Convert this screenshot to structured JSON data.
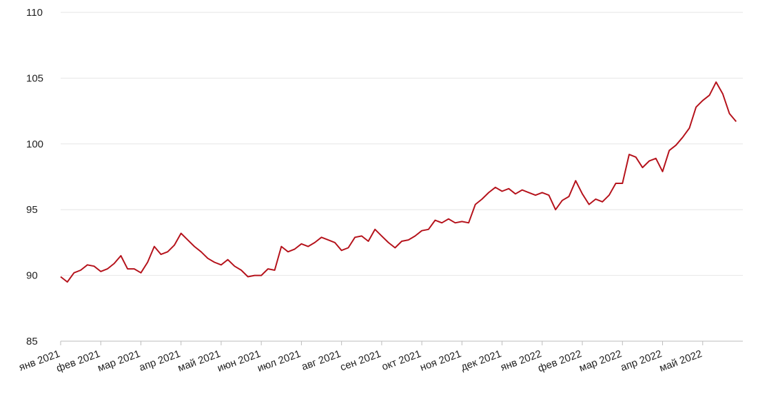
{
  "chart_data": {
    "type": "line",
    "categories": [
      "янв 2021",
      null,
      null,
      null,
      null,
      null,
      "фев 2021",
      null,
      null,
      null,
      null,
      null,
      "мар 2021",
      null,
      null,
      null,
      null,
      null,
      "апр 2021",
      null,
      null,
      null,
      null,
      null,
      "май 2021",
      null,
      null,
      null,
      null,
      null,
      "июн 2021",
      null,
      null,
      null,
      null,
      null,
      "июл 2021",
      null,
      null,
      null,
      null,
      null,
      "авг 2021",
      null,
      null,
      null,
      null,
      null,
      "сен 2021",
      null,
      null,
      null,
      null,
      null,
      "окт 2021",
      null,
      null,
      null,
      null,
      null,
      "ноя 2021",
      null,
      null,
      null,
      null,
      null,
      "дек 2021",
      null,
      null,
      null,
      null,
      null,
      "янв 2022",
      null,
      null,
      null,
      null,
      null,
      "фев 2022",
      null,
      null,
      null,
      null,
      null,
      "мар 2022",
      null,
      null,
      null,
      null,
      null,
      "апр 2022",
      null,
      null,
      null,
      null,
      null,
      "май 2022",
      null,
      null,
      null,
      null,
      null
    ],
    "series": [
      {
        "color": "#b5121b",
        "values": [
          89.9,
          89.5,
          90.2,
          90.4,
          90.8,
          90.7,
          90.3,
          90.5,
          90.9,
          91.5,
          90.5,
          90.5,
          90.2,
          91.0,
          92.2,
          91.6,
          91.8,
          92.3,
          93.2,
          92.7,
          92.2,
          91.8,
          91.3,
          91.0,
          90.8,
          91.2,
          90.7,
          90.4,
          89.9,
          90.0,
          90.0,
          90.5,
          90.4,
          92.2,
          91.8,
          92.0,
          92.4,
          92.2,
          92.5,
          92.9,
          92.7,
          92.5,
          91.9,
          92.1,
          92.9,
          93.0,
          92.6,
          93.5,
          93.0,
          92.5,
          92.1,
          92.6,
          92.7,
          93.0,
          93.4,
          93.5,
          94.2,
          94.0,
          94.3,
          94.0,
          94.1,
          94.0,
          95.4,
          95.8,
          96.3,
          96.7,
          96.4,
          96.6,
          96.2,
          96.5,
          96.3,
          96.1,
          96.3,
          96.1,
          95.0,
          95.7,
          96.0,
          97.2,
          96.2,
          95.4,
          95.8,
          95.6,
          96.1,
          97.0,
          97.0,
          99.2,
          99.0,
          98.2,
          98.7,
          98.9,
          97.9,
          99.5,
          99.9,
          100.5,
          101.2,
          102.8,
          103.3,
          103.7,
          104.7,
          103.8,
          102.3,
          101.7
        ]
      }
    ],
    "ylim": [
      85,
      110
    ],
    "yticks": [
      85,
      90,
      95,
      100,
      105,
      110
    ],
    "grid": true
  }
}
